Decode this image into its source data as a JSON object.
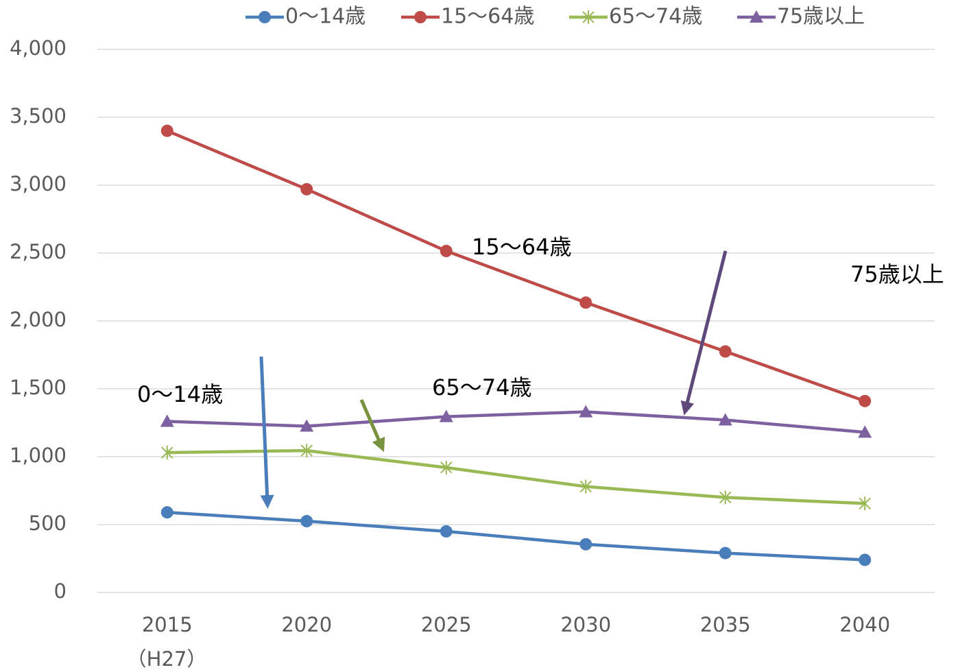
{
  "chart_data": {
    "type": "line",
    "categories": [
      "2015",
      "2020",
      "2025",
      "2030",
      "2035",
      "2040"
    ],
    "x_sublabel": "（H27）",
    "series": [
      {
        "name": "0〜14歳",
        "color": "#4a7ebb",
        "marker": "circle",
        "values": [
          590,
          525,
          450,
          355,
          290,
          240
        ]
      },
      {
        "name": "15〜64歳",
        "color": "#be4b48",
        "marker": "circle",
        "values": [
          3400,
          2970,
          2515,
          2135,
          1775,
          1410
        ]
      },
      {
        "name": "65〜74歳",
        "color": "#98b954",
        "marker": "asterisk",
        "values": [
          1030,
          1045,
          920,
          780,
          700,
          655
        ]
      },
      {
        "name": "75歳以上",
        "color": "#7d60a0",
        "marker": "triangle",
        "values": [
          1260,
          1225,
          1295,
          1330,
          1270,
          1180
        ]
      }
    ],
    "ylim": [
      0,
      4000
    ],
    "yticks": [
      0,
      500,
      {
        "value": 1000,
        "label": "1,000"
      },
      {
        "value": 1500,
        "label": "1,500"
      },
      {
        "value": 2000,
        "label": "2,000"
      },
      {
        "value": 2500,
        "label": "2,500"
      },
      {
        "value": 3000,
        "label": "3,000"
      },
      {
        "value": 3500,
        "label": "3,500"
      },
      {
        "value": 4000,
        "label": "4,000"
      }
    ],
    "grid": true,
    "legend": "top",
    "annotations": [
      "15〜64歳",
      "75歳以上",
      "0〜14歳",
      "65〜74歳"
    ]
  }
}
